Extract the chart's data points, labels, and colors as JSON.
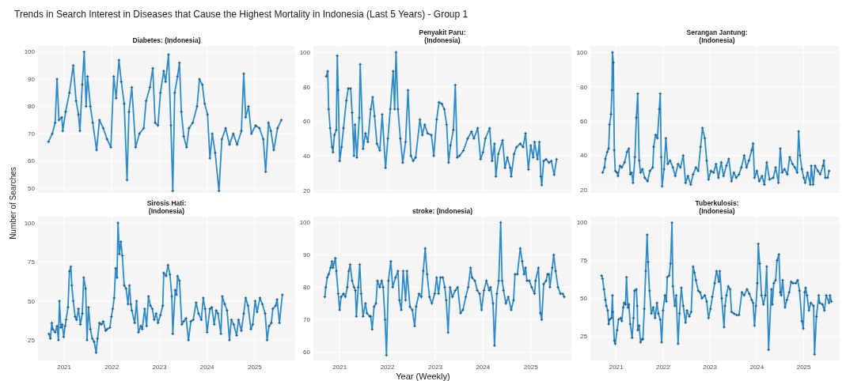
{
  "chart_data": [
    {
      "type": "line",
      "title": "Diabetes: (Indonesia)",
      "annotations": [
        "Trends in Search Interest in Diseases that Cause the Highest Mortality in Indonesia (Last 5 Years) - Group 1"
      ],
      "xlim": [
        2020.45,
        2025.85
      ],
      "xticks": [
        2021,
        2022,
        2023,
        2024,
        2025
      ],
      "ylim": [
        48.3,
        102.2
      ],
      "yticks": [
        50,
        60,
        70,
        80,
        90,
        100
      ],
      "grid": true,
      "marker": "cross",
      "tick_labels": "y",
      "series": [
        {
          "color": "#2e8bc8",
          "x": [
            2020.67,
            2020.75,
            2020.81,
            2020.85,
            2020.89,
            2020.95,
            2020.97,
            2021.03,
            2021.11,
            2021.19,
            2021.25,
            2021.3,
            2021.33,
            2021.38,
            2021.42,
            2021.46,
            2021.49,
            2021.55,
            2021.6,
            2021.68,
            2021.74,
            2021.82,
            2021.9,
            2021.98,
            2022.04,
            2022.09,
            2022.15,
            2022.2,
            2022.26,
            2022.32,
            2022.36,
            2022.42,
            2022.5,
            2022.58,
            2022.67,
            2022.72,
            2022.8,
            2022.86,
            2022.91,
            2022.97,
            2023.02,
            2023.09,
            2023.13,
            2023.19,
            2023.24,
            2023.28,
            2023.32,
            2023.38,
            2023.42,
            2023.46,
            2023.51,
            2023.57,
            2023.62,
            2023.7,
            2023.79,
            2023.84,
            2023.9,
            2023.95,
            2024.01,
            2024.06,
            2024.11,
            2024.17,
            2024.25,
            2024.31,
            2024.39,
            2024.47,
            2024.55,
            2024.63,
            2024.72,
            2024.77,
            2024.81,
            2024.87,
            2024.93,
            2025.02,
            2025.1,
            2025.18,
            2025.23,
            2025.29,
            2025.34,
            2025.4,
            2025.48,
            2025.56
          ],
          "values": [
            67,
            70,
            74,
            90,
            75,
            76,
            71,
            78,
            85,
            95,
            82,
            77,
            71,
            88,
            100,
            80,
            91,
            80,
            74,
            64,
            75,
            72,
            68,
            65,
            91,
            83,
            97,
            89,
            81,
            53,
            78,
            87,
            65,
            70,
            72,
            82,
            87,
            94,
            74,
            73,
            85,
            93,
            89,
            99,
            73,
            49,
            85,
            91,
            96,
            78,
            69,
            65,
            72,
            74,
            80,
            90,
            88,
            81,
            77,
            61,
            70,
            63,
            49,
            68,
            72,
            66,
            70,
            66,
            71,
            92,
            76,
            80,
            70,
            73,
            72,
            68,
            56,
            74,
            71,
            64,
            72,
            75
          ]
        }
      ]
    },
    {
      "type": "line",
      "title": "Penyakit Paru: (Indonesia)",
      "xlim": [
        2020.45,
        2025.85
      ],
      "xticks": [
        2021,
        2022,
        2023,
        2024,
        2025
      ],
      "ylim": [
        18.5,
        103.7
      ],
      "yticks": [
        20,
        40,
        60,
        80,
        100
      ],
      "grid": true,
      "marker": "cross",
      "tick_labels": "y",
      "series": [
        {
          "color": "#2e8bc8",
          "x": [
            2020.72,
            2020.75,
            2020.77,
            2020.8,
            2020.84,
            2020.86,
            2020.89,
            2020.93,
            2020.95,
            2020.97,
            2021.0,
            2021.04,
            2021.08,
            2021.14,
            2021.18,
            2021.23,
            2021.26,
            2021.3,
            2021.32,
            2021.36,
            2021.41,
            2021.43,
            2021.49,
            2021.54,
            2021.59,
            2021.65,
            2021.69,
            2021.73,
            2021.78,
            2021.84,
            2021.89,
            2021.96,
            2022.01,
            2022.06,
            2022.12,
            2022.15,
            2022.18,
            2022.22,
            2022.27,
            2022.32,
            2022.38,
            2022.43,
            2022.49,
            2022.54,
            2022.59,
            2022.68,
            2022.73,
            2022.78,
            2022.84,
            2022.92,
            2022.97,
            2023.03,
            2023.08,
            2023.14,
            2023.19,
            2023.24,
            2023.28,
            2023.32,
            2023.38,
            2023.42,
            2023.46,
            2023.51,
            2023.59,
            2023.68,
            2023.76,
            2023.81,
            2023.89,
            2023.95,
            2024.0,
            2024.05,
            2024.14,
            2024.19,
            2024.24,
            2024.27,
            2024.32,
            2024.41,
            2024.46,
            2024.51,
            2024.57,
            2024.59,
            2024.65,
            2024.7,
            2024.78,
            2024.84,
            2024.89,
            2024.95,
            2025.0,
            2025.05,
            2025.08,
            2025.14,
            2025.18,
            2025.21,
            2025.23,
            2025.27,
            2025.32,
            2025.38,
            2025.43,
            2025.49,
            2025.54
          ],
          "values": [
            86,
            89,
            67,
            56,
            45,
            42,
            52,
            55,
            98,
            78,
            37,
            45,
            56,
            72,
            79,
            79,
            65,
            40,
            58,
            39,
            62,
            93,
            44,
            53,
            48,
            67,
            74,
            63,
            47,
            43,
            64,
            33,
            50,
            67,
            89,
            67,
            100,
            67,
            50,
            36,
            48,
            78,
            40,
            37,
            39,
            61,
            52,
            58,
            53,
            52,
            40,
            61,
            71,
            70,
            67,
            58,
            36,
            46,
            55,
            81,
            39,
            40,
            43,
            50,
            54,
            50,
            56,
            38,
            42,
            50,
            56,
            37,
            47,
            28,
            41,
            49,
            33,
            39,
            33,
            28,
            41,
            45,
            47,
            45,
            53,
            32,
            46,
            39,
            48,
            38,
            48,
            28,
            23,
            37,
            38,
            36,
            37,
            29,
            38
          ]
        }
      ]
    },
    {
      "type": "line",
      "title": "Serangan Jantung: (Indonesia)",
      "xlim": [
        2020.45,
        2025.85
      ],
      "xticks": [
        2021,
        2022,
        2023,
        2024,
        2025
      ],
      "ylim": [
        18.2,
        103.8
      ],
      "yticks": [
        20,
        40,
        60,
        80,
        100
      ],
      "grid": true,
      "marker": "cross",
      "tick_labels": "y",
      "series": [
        {
          "color": "#2e8bc8",
          "x": [
            2020.71,
            2020.75,
            2020.77,
            2020.81,
            2020.84,
            2020.86,
            2020.89,
            2020.91,
            2020.92,
            2020.94,
            2020.96,
            2020.98,
            2021.02,
            2021.04,
            2021.08,
            2021.12,
            2021.18,
            2021.23,
            2021.27,
            2021.3,
            2021.33,
            2021.36,
            2021.4,
            2021.43,
            2021.46,
            2021.49,
            2021.52,
            2021.56,
            2021.61,
            2021.67,
            2021.72,
            2021.78,
            2021.8,
            2021.84,
            2021.88,
            2021.92,
            2021.94,
            2021.96,
            2021.98,
            2022.02,
            2022.06,
            2022.1,
            2022.15,
            2022.21,
            2022.26,
            2022.32,
            2022.37,
            2022.43,
            2022.48,
            2022.53,
            2022.59,
            2022.64,
            2022.7,
            2022.75,
            2022.8,
            2022.84,
            2022.89,
            2022.93,
            2022.97,
            2023.02,
            2023.08,
            2023.13,
            2023.18,
            2023.24,
            2023.29,
            2023.35,
            2023.4,
            2023.46,
            2023.51,
            2023.56,
            2023.62,
            2023.67,
            2023.73,
            2023.78,
            2023.83,
            2023.89,
            2023.92,
            2023.95,
            2024.0,
            2024.05,
            2024.11,
            2024.16,
            2024.21,
            2024.27,
            2024.35,
            2024.4,
            2024.46,
            2024.5,
            2024.54,
            2024.59,
            2024.65,
            2024.7,
            2024.76,
            2024.81,
            2024.86,
            2024.89,
            2024.92,
            2024.96,
            2025.0,
            2025.03,
            2025.08,
            2025.14,
            2025.16,
            2025.2,
            2025.24,
            2025.3,
            2025.35,
            2025.41,
            2025.43,
            2025.46,
            2025.51,
            2025.54
          ],
          "values": [
            30,
            33,
            38,
            42,
            44,
            58,
            64,
            78,
            100,
            94,
            43,
            31,
            30,
            28,
            34,
            33,
            36,
            42,
            44,
            29,
            30,
            24,
            39,
            62,
            76,
            37,
            30,
            32,
            27,
            25,
            31,
            33,
            45,
            52,
            50,
            67,
            76,
            39,
            22,
            32,
            50,
            35,
            37,
            33,
            28,
            35,
            33,
            40,
            24,
            28,
            23,
            29,
            33,
            31,
            45,
            56,
            50,
            37,
            26,
            31,
            30,
            35,
            27,
            36,
            28,
            34,
            38,
            25,
            30,
            27,
            29,
            33,
            40,
            33,
            37,
            43,
            47,
            27,
            31,
            25,
            28,
            23,
            36,
            26,
            27,
            33,
            24,
            44,
            30,
            32,
            29,
            39,
            35,
            33,
            30,
            54,
            40,
            32,
            27,
            24,
            30,
            23,
            34,
            23,
            34,
            31,
            29,
            34,
            37,
            27,
            27,
            31
          ]
        }
      ]
    },
    {
      "type": "line",
      "title": "Sirosis Hati: (Indonesia)",
      "ylabel": "Number of Searches",
      "xlim": [
        2020.45,
        2025.85
      ],
      "xticks": [
        2021,
        2022,
        2023,
        2024,
        2025
      ],
      "ylim": [
        12,
        104
      ],
      "yticks": [
        25,
        50,
        75,
        100
      ],
      "grid": true,
      "marker": "cross",
      "series": [
        {
          "color": "#2e8bc8",
          "x": [
            2020.68,
            2020.71,
            2020.74,
            2020.76,
            2020.81,
            2020.85,
            2020.88,
            2020.9,
            2020.93,
            2020.96,
            2020.99,
            2021.02,
            2021.04,
            2021.08,
            2021.11,
            2021.14,
            2021.16,
            2021.19,
            2021.23,
            2021.26,
            2021.3,
            2021.34,
            2021.38,
            2021.41,
            2021.45,
            2021.48,
            2021.51,
            2021.55,
            2021.59,
            2021.63,
            2021.67,
            2021.7,
            2021.74,
            2021.78,
            2021.82,
            2021.87,
            2021.9,
            2021.96,
            2021.99,
            2022.02,
            2022.05,
            2022.08,
            2022.11,
            2022.13,
            2022.16,
            2022.19,
            2022.22,
            2022.26,
            2022.3,
            2022.34,
            2022.37,
            2022.4,
            2022.42,
            2022.48,
            2022.52,
            2022.56,
            2022.61,
            2022.64,
            2022.69,
            2022.73,
            2022.77,
            2022.81,
            2022.85,
            2022.89,
            2022.93,
            2022.97,
            2023.02,
            2023.07,
            2023.09,
            2023.14,
            2023.18,
            2023.22,
            2023.26,
            2023.28,
            2023.33,
            2023.36,
            2023.38,
            2023.42,
            2023.47,
            2023.51,
            2023.56,
            2023.61,
            2023.66,
            2023.71,
            2023.77,
            2023.82,
            2023.88,
            2023.92,
            2023.96,
            2024.0,
            2024.06,
            2024.1,
            2024.15,
            2024.19,
            2024.23,
            2024.29,
            2024.32,
            2024.37,
            2024.42,
            2024.47,
            2024.51,
            2024.56,
            2024.62,
            2024.66,
            2024.72,
            2024.77,
            2024.81,
            2024.86,
            2024.92,
            2024.96,
            2025.01,
            2025.05,
            2025.11,
            2025.16,
            2025.22,
            2025.26,
            2025.3,
            2025.35,
            2025.38,
            2025.44,
            2025.47,
            2025.52,
            2025.58
          ],
          "values": [
            29,
            26,
            36,
            32,
            30,
            34,
            25,
            50,
            33,
            35,
            27,
            34,
            38,
            46,
            69,
            72,
            60,
            50,
            40,
            38,
            45,
            35,
            42,
            65,
            58,
            25,
            46,
            32,
            26,
            24,
            17,
            26,
            36,
            35,
            37,
            31,
            32,
            33,
            40,
            45,
            52,
            71,
            65,
            100,
            80,
            88,
            79,
            60,
            58,
            48,
            60,
            48,
            44,
            36,
            50,
            30,
            34,
            32,
            45,
            34,
            53,
            47,
            45,
            38,
            42,
            36,
            41,
            47,
            68,
            66,
            73,
            67,
            53,
            29,
            57,
            54,
            66,
            63,
            35,
            37,
            39,
            25,
            37,
            38,
            49,
            42,
            38,
            52,
            45,
            30,
            45,
            46,
            35,
            44,
            42,
            29,
            53,
            48,
            44,
            25,
            38,
            35,
            28,
            38,
            31,
            42,
            52,
            47,
            32,
            35,
            50,
            43,
            52,
            48,
            42,
            25,
            34,
            36,
            45,
            47,
            51,
            36,
            54
          ]
        }
      ]
    },
    {
      "type": "line",
      "title": "stroke: (Indonesia)",
      "xlabel": "Year (Weekly)",
      "xlim": [
        2020.45,
        2025.85
      ],
      "xticks": [
        2021,
        2022,
        2023,
        2024,
        2025
      ],
      "ylim": [
        57.4,
        101.8
      ],
      "yticks": [
        60,
        70,
        80,
        90,
        100
      ],
      "grid": true,
      "marker": "cross",
      "series": [
        {
          "color": "#2e8bc8",
          "x": [
            2020.69,
            2020.71,
            2020.74,
            2020.77,
            2020.81,
            2020.84,
            2020.86,
            2020.91,
            2020.93,
            2020.97,
            2021.0,
            2021.03,
            2021.08,
            2021.12,
            2021.16,
            2021.19,
            2021.22,
            2021.26,
            2021.3,
            2021.33,
            2021.35,
            2021.39,
            2021.42,
            2021.45,
            2021.49,
            2021.54,
            2021.57,
            2021.63,
            2021.65,
            2021.68,
            2021.72,
            2021.76,
            2021.79,
            2021.84,
            2021.88,
            2021.91,
            2021.95,
            2021.98,
            2022.02,
            2022.07,
            2022.11,
            2022.17,
            2022.22,
            2022.25,
            2022.29,
            2022.33,
            2022.38,
            2022.41,
            2022.47,
            2022.52,
            2022.57,
            2022.6,
            2022.66,
            2022.71,
            2022.75,
            2022.79,
            2022.83,
            2022.88,
            2022.93,
            2022.99,
            2023.03,
            2023.07,
            2023.11,
            2023.16,
            2023.2,
            2023.23,
            2023.27,
            2023.31,
            2023.36,
            2023.42,
            2023.47,
            2023.53,
            2023.58,
            2023.64,
            2023.69,
            2023.74,
            2023.77,
            2023.83,
            2023.88,
            2023.93,
            2023.97,
            2024.02,
            2024.07,
            2024.13,
            2024.16,
            2024.21,
            2024.24,
            2024.29,
            2024.33,
            2024.37,
            2024.4,
            2024.43,
            2024.48,
            2024.53,
            2024.59,
            2024.64,
            2024.67,
            2024.72,
            2024.78,
            2024.82,
            2024.86,
            2024.89,
            2024.92,
            2024.97,
            2025.02,
            2025.08,
            2025.1,
            2025.16,
            2025.2,
            2025.23,
            2025.27,
            2025.32,
            2025.35,
            2025.38,
            2025.4,
            2025.45,
            2025.48,
            2025.52,
            2025.57,
            2025.62,
            2025.67,
            2025.7
          ],
          "values": [
            77,
            80,
            83,
            84,
            86,
            88,
            86,
            89,
            85,
            78,
            73,
            77,
            78,
            77,
            80,
            85,
            87,
            82,
            80,
            79,
            71,
            80,
            87,
            78,
            71,
            75,
            72,
            71,
            71,
            67,
            74,
            75,
            82,
            80,
            82,
            80,
            70,
            59,
            82,
            88,
            80,
            83,
            85,
            76,
            73,
            85,
            76,
            85,
            74,
            73,
            68,
            74,
            78,
            77,
            85,
            92,
            84,
            77,
            75,
            78,
            83,
            78,
            83,
            83,
            80,
            76,
            66,
            80,
            77,
            79,
            80,
            72,
            73,
            77,
            80,
            86,
            83,
            82,
            79,
            78,
            73,
            79,
            82,
            79,
            80,
            75,
            62,
            78,
            82,
            100,
            82,
            79,
            75,
            77,
            73,
            76,
            84,
            84,
            92,
            88,
            84,
            86,
            82,
            82,
            80,
            78,
            82,
            86,
            72,
            70,
            81,
            82,
            84,
            84,
            80,
            86,
            90,
            85,
            80,
            78,
            78,
            77
          ]
        }
      ]
    },
    {
      "type": "line",
      "title": "Tuberkulosis: (Indonesia)",
      "xlim": [
        2020.45,
        2025.85
      ],
      "xticks": [
        2021,
        2022,
        2023,
        2024,
        2025
      ],
      "ylim": [
        9,
        104
      ],
      "yticks": [
        25,
        50,
        75,
        100
      ],
      "grid": true,
      "marker": "cross",
      "series": [
        {
          "color": "#2e8bc8",
          "x": [
            2020.69,
            2020.71,
            2020.74,
            2020.77,
            2020.79,
            2020.82,
            2020.84,
            2020.86,
            2020.9,
            2020.92,
            2020.93,
            2020.96,
            2020.98,
            2021.02,
            2021.05,
            2021.1,
            2021.12,
            2021.15,
            2021.17,
            2021.2,
            2021.22,
            2021.25,
            2021.27,
            2021.3,
            2021.34,
            2021.37,
            2021.39,
            2021.43,
            2021.45,
            2021.46,
            2021.49,
            2021.52,
            2021.55,
            2021.57,
            2021.6,
            2021.63,
            2021.66,
            2021.68,
            2021.71,
            2021.75,
            2021.79,
            2021.83,
            2021.87,
            2021.9,
            2021.94,
            2021.97,
            2022.0,
            2022.04,
            2022.07,
            2022.09,
            2022.13,
            2022.16,
            2022.19,
            2022.21,
            2022.25,
            2022.28,
            2022.32,
            2022.35,
            2022.39,
            2022.43,
            2022.48,
            2022.51,
            2022.56,
            2022.6,
            2022.64,
            2022.67,
            2022.7,
            2022.75,
            2022.79,
            2022.83,
            2022.89,
            2022.93,
            2022.97,
            2023.01,
            2023.05,
            2023.1,
            2023.14,
            2023.19,
            2023.21,
            2023.25,
            2023.3,
            2023.32,
            2023.35,
            2023.39,
            2023.43,
            2023.46,
            2023.51,
            2023.57,
            2023.62,
            2023.68,
            2023.73,
            2023.79,
            2023.84,
            2023.89,
            2023.92,
            2023.95,
            2023.98,
            2024.01,
            2024.03,
            2024.06,
            2024.1,
            2024.14,
            2024.18,
            2024.21,
            2024.25,
            2024.31,
            2024.33,
            2024.36,
            2024.4,
            2024.43,
            2024.47,
            2024.5,
            2024.52,
            2024.55,
            2024.6,
            2024.64,
            2024.69,
            2024.73,
            2024.77,
            2024.83,
            2024.87,
            2024.91,
            2024.96,
            2024.99,
            2025.02,
            2025.04,
            2025.07,
            2025.11,
            2025.15,
            2025.21,
            2025.23,
            2025.27,
            2025.32,
            2025.34,
            2025.4,
            2025.44,
            2025.48,
            2025.54,
            2025.56,
            2025.59
          ],
          "values": [
            65,
            63,
            56,
            49,
            45,
            42,
            33,
            36,
            37,
            52,
            41,
            22,
            20,
            29,
            36,
            37,
            35,
            44,
            47,
            46,
            64,
            44,
            46,
            33,
            24,
            37,
            55,
            56,
            45,
            29,
            32,
            21,
            23,
            23,
            43,
            68,
            92,
            74,
            55,
            40,
            44,
            37,
            47,
            40,
            36,
            21,
            42,
            52,
            48,
            64,
            65,
            73,
            100,
            58,
            45,
            52,
            20,
            40,
            57,
            45,
            34,
            42,
            38,
            41,
            71,
            67,
            62,
            55,
            54,
            50,
            52,
            48,
            37,
            43,
            51,
            60,
            68,
            61,
            68,
            50,
            31,
            45,
            52,
            58,
            56,
            41,
            40,
            39,
            39,
            54,
            52,
            56,
            53,
            49,
            47,
            32,
            45,
            60,
            86,
            73,
            52,
            46,
            52,
            71,
            16,
            56,
            46,
            60,
            62,
            75,
            79,
            54,
            52,
            62,
            44,
            49,
            54,
            61,
            60,
            60,
            62,
            55,
            35,
            30,
            54,
            57,
            52,
            42,
            47,
            45,
            13,
            38,
            52,
            47,
            46,
            42,
            52,
            47,
            52,
            48
          ]
        }
      ]
    }
  ]
}
